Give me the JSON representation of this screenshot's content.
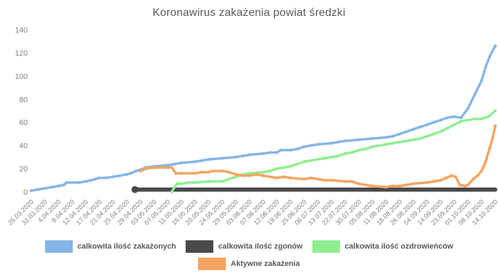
{
  "title": "Koronawirus zakażenia powiat średzki",
  "colors": {
    "background": "#ffffff",
    "title_text": "#595959",
    "tick_text": "#808080",
    "legend_text": "#595959",
    "series_infected": "#85b5e6",
    "series_deaths": "#4a4a4a",
    "series_recovered": "#90ee90",
    "series_active": "#f4a460"
  },
  "chart_data": {
    "type": "line",
    "title": "Koronawirus zakażenia powiat średzki",
    "xlabel": "",
    "ylabel": "",
    "ylim": [
      0,
      140
    ],
    "yticks": [
      0,
      20,
      40,
      60,
      80,
      100,
      120,
      140
    ],
    "grid": false,
    "legend_position": "bottom",
    "x_labels": [
      "25.03.2020",
      "31.03.2020",
      "4.04.2020",
      "8.04.2020",
      "12.04.2020",
      "17.04.2020",
      "21.04.2020",
      "25.04.2020",
      "29.04.2020",
      "03.05.2020",
      "07.05.2020",
      "11.05.2020",
      "16.05.2020",
      "20.05.2020",
      "24.05.2020",
      "29.05.2020",
      "03.06.2020",
      "07.06.2020",
      "12.06.2020",
      "19.06.2020",
      "25.06.2020",
      "06.07.2020",
      "13.07.2020",
      "22.07.2020",
      "30.07.2020",
      "05.08.2020",
      "11.08.2020",
      "18.08.2020",
      "26.08.2020",
      "04.09.2020",
      "14.09.2020",
      "23.09.2020",
      "01.10.2020",
      "08.10.2020",
      "14.10.2020"
    ],
    "series": [
      {
        "name": "calkowita ilość zakażonych",
        "color": "#85b5e6",
        "width": 3.5,
        "markers": true,
        "points": [
          [
            0,
            1
          ],
          [
            0.5,
            2
          ],
          [
            1,
            3
          ],
          [
            1.5,
            4
          ],
          [
            2,
            5
          ],
          [
            2.4,
            6
          ],
          [
            2.6,
            8
          ],
          [
            3.5,
            8
          ],
          [
            4,
            9
          ],
          [
            4.4,
            10
          ],
          [
            4.7,
            11
          ],
          [
            5,
            12
          ],
          [
            5.5,
            12
          ],
          [
            6,
            13
          ],
          [
            6.5,
            14
          ],
          [
            7,
            15
          ],
          [
            7.3,
            16
          ],
          [
            7.7,
            18
          ],
          [
            8,
            19
          ],
          [
            8.4,
            21
          ],
          [
            9,
            22
          ],
          [
            10,
            23
          ],
          [
            10.5,
            24
          ],
          [
            11,
            25
          ],
          [
            12,
            26
          ],
          [
            12.5,
            27
          ],
          [
            13,
            28
          ],
          [
            14,
            29
          ],
          [
            15,
            30
          ],
          [
            15.5,
            31
          ],
          [
            16,
            32
          ],
          [
            17,
            33
          ],
          [
            17.5,
            34
          ],
          [
            18,
            34
          ],
          [
            18.3,
            36
          ],
          [
            19,
            36
          ],
          [
            19.5,
            37
          ],
          [
            20,
            39
          ],
          [
            20.5,
            40
          ],
          [
            21,
            41
          ],
          [
            22,
            42
          ],
          [
            22.5,
            43
          ],
          [
            23,
            44
          ],
          [
            24,
            45
          ],
          [
            25,
            46
          ],
          [
            26,
            47
          ],
          [
            26.5,
            48
          ],
          [
            27,
            50
          ],
          [
            27.5,
            52
          ],
          [
            28,
            54
          ],
          [
            28.5,
            56
          ],
          [
            29,
            58
          ],
          [
            29.5,
            60
          ],
          [
            30,
            62
          ],
          [
            30.5,
            64
          ],
          [
            31,
            65
          ],
          [
            31.5,
            64
          ],
          [
            32,
            72
          ],
          [
            32.5,
            84
          ],
          [
            33,
            96
          ],
          [
            33.3,
            108
          ],
          [
            33.6,
            117
          ],
          [
            34,
            126
          ]
        ]
      },
      {
        "name": "calkowita ilość zgonów",
        "color": "#4a4a4a",
        "width": 6,
        "markers": false,
        "points": [
          [
            7.6,
            2
          ],
          [
            34,
            2
          ]
        ]
      },
      {
        "name": "calkowita ilość ozdrowieńców",
        "color": "#90ee90",
        "width": 3.5,
        "markers": true,
        "points": [
          [
            10.3,
            0
          ],
          [
            10.5,
            4
          ],
          [
            10.7,
            7
          ],
          [
            11,
            7
          ],
          [
            11.5,
            8
          ],
          [
            12,
            8
          ],
          [
            13,
            9
          ],
          [
            14,
            9
          ],
          [
            14.5,
            11
          ],
          [
            15,
            13
          ],
          [
            15.5,
            15
          ],
          [
            16,
            16
          ],
          [
            17,
            17
          ],
          [
            17.5,
            18
          ],
          [
            18,
            20
          ],
          [
            18.5,
            21
          ],
          [
            19,
            22
          ],
          [
            19.5,
            24
          ],
          [
            20,
            26
          ],
          [
            21,
            28
          ],
          [
            21.5,
            29
          ],
          [
            22,
            30
          ],
          [
            22.5,
            31
          ],
          [
            23,
            33
          ],
          [
            23.5,
            34
          ],
          [
            24,
            36
          ],
          [
            24.5,
            37
          ],
          [
            25,
            39
          ],
          [
            26,
            41
          ],
          [
            26.5,
            42
          ],
          [
            27,
            43
          ],
          [
            28,
            45
          ],
          [
            28.5,
            46
          ],
          [
            29,
            48
          ],
          [
            29.5,
            50
          ],
          [
            30,
            52
          ],
          [
            30.5,
            55
          ],
          [
            31,
            58
          ],
          [
            31.5,
            61
          ],
          [
            32,
            62
          ],
          [
            32.5,
            63
          ],
          [
            33,
            63
          ],
          [
            33.5,
            65
          ],
          [
            34,
            70
          ]
        ]
      },
      {
        "name": "Aktywne zakażenia",
        "color": "#f4a460",
        "width": 3.5,
        "markers": true,
        "points": [
          [
            8,
            18
          ],
          [
            8.4,
            20
          ],
          [
            9,
            21
          ],
          [
            10,
            21
          ],
          [
            10.3,
            21
          ],
          [
            10.6,
            16
          ],
          [
            11,
            16
          ],
          [
            12,
            16
          ],
          [
            12.5,
            17
          ],
          [
            13,
            17
          ],
          [
            13.3,
            18
          ],
          [
            14,
            18
          ],
          [
            14.5,
            17
          ],
          [
            15,
            15
          ],
          [
            15.5,
            14
          ],
          [
            16,
            14
          ],
          [
            16.5,
            15
          ],
          [
            17,
            14
          ],
          [
            18,
            12
          ],
          [
            18.5,
            13
          ],
          [
            19,
            12
          ],
          [
            20,
            11
          ],
          [
            20.5,
            12
          ],
          [
            21,
            11
          ],
          [
            21.5,
            10
          ],
          [
            22,
            10
          ],
          [
            23,
            9
          ],
          [
            23.5,
            9
          ],
          [
            24,
            7
          ],
          [
            25,
            5
          ],
          [
            26,
            4
          ],
          [
            26.5,
            5
          ],
          [
            27,
            5
          ],
          [
            27.5,
            6
          ],
          [
            28,
            7
          ],
          [
            29,
            8
          ],
          [
            29.5,
            9
          ],
          [
            30,
            10
          ],
          [
            30.4,
            12
          ],
          [
            30.8,
            14
          ],
          [
            31.1,
            13
          ],
          [
            31.4,
            6
          ],
          [
            31.8,
            5
          ],
          [
            32,
            6
          ],
          [
            32.4,
            11
          ],
          [
            32.7,
            14
          ],
          [
            33,
            18
          ],
          [
            33.3,
            26
          ],
          [
            33.6,
            38
          ],
          [
            33.8,
            46
          ],
          [
            34,
            57
          ]
        ]
      }
    ]
  }
}
